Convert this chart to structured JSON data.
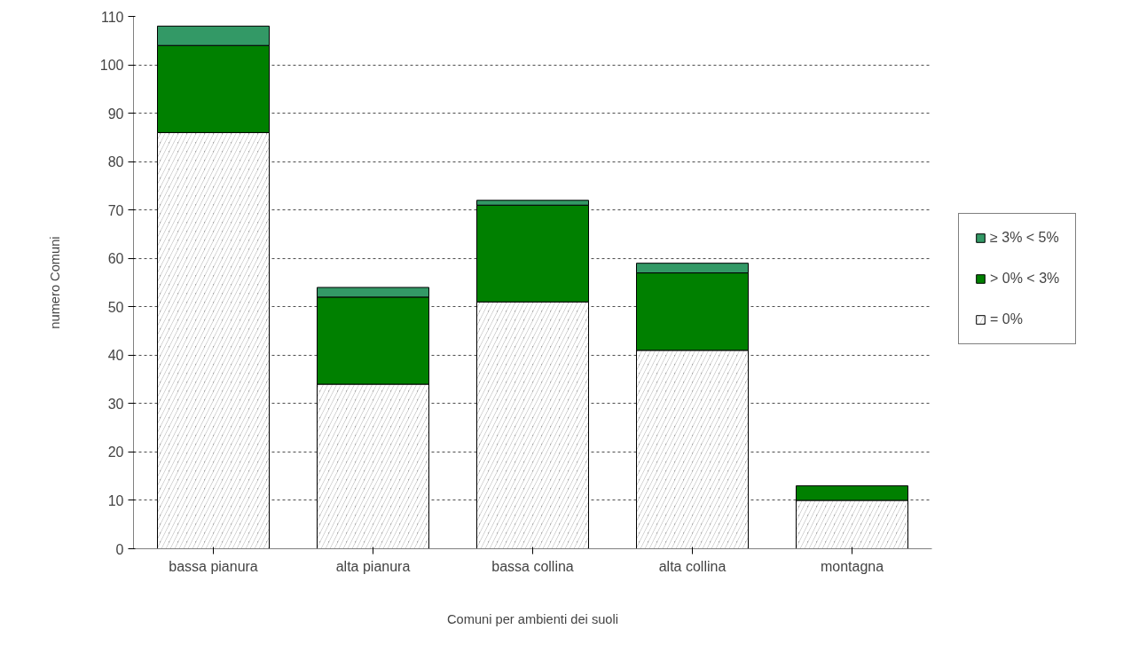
{
  "chart_data": {
    "type": "bar",
    "stacked": true,
    "xlabel": "Comuni per ambienti dei suoli",
    "ylabel": "numero Comuni",
    "categories": [
      "bassa pianura",
      "alta pianura",
      "bassa collina",
      "alta collina",
      "montagna"
    ],
    "series": [
      {
        "name": "= 0%",
        "color": "#a6a6a6",
        "values": [
          86,
          34,
          51,
          41,
          10
        ]
      },
      {
        "name": "> 0% < 3%",
        "color": "#008000",
        "values": [
          18,
          18,
          20,
          16,
          3
        ]
      },
      {
        "name": "≥ 3% < 5%",
        "color": "#339966",
        "values": [
          4,
          2,
          1,
          2,
          0
        ]
      }
    ],
    "ylim": [
      0,
      110
    ],
    "yticks": [
      0,
      10,
      20,
      30,
      40,
      50,
      60,
      70,
      80,
      90,
      100,
      110
    ],
    "grid": "y",
    "legend": "right"
  }
}
